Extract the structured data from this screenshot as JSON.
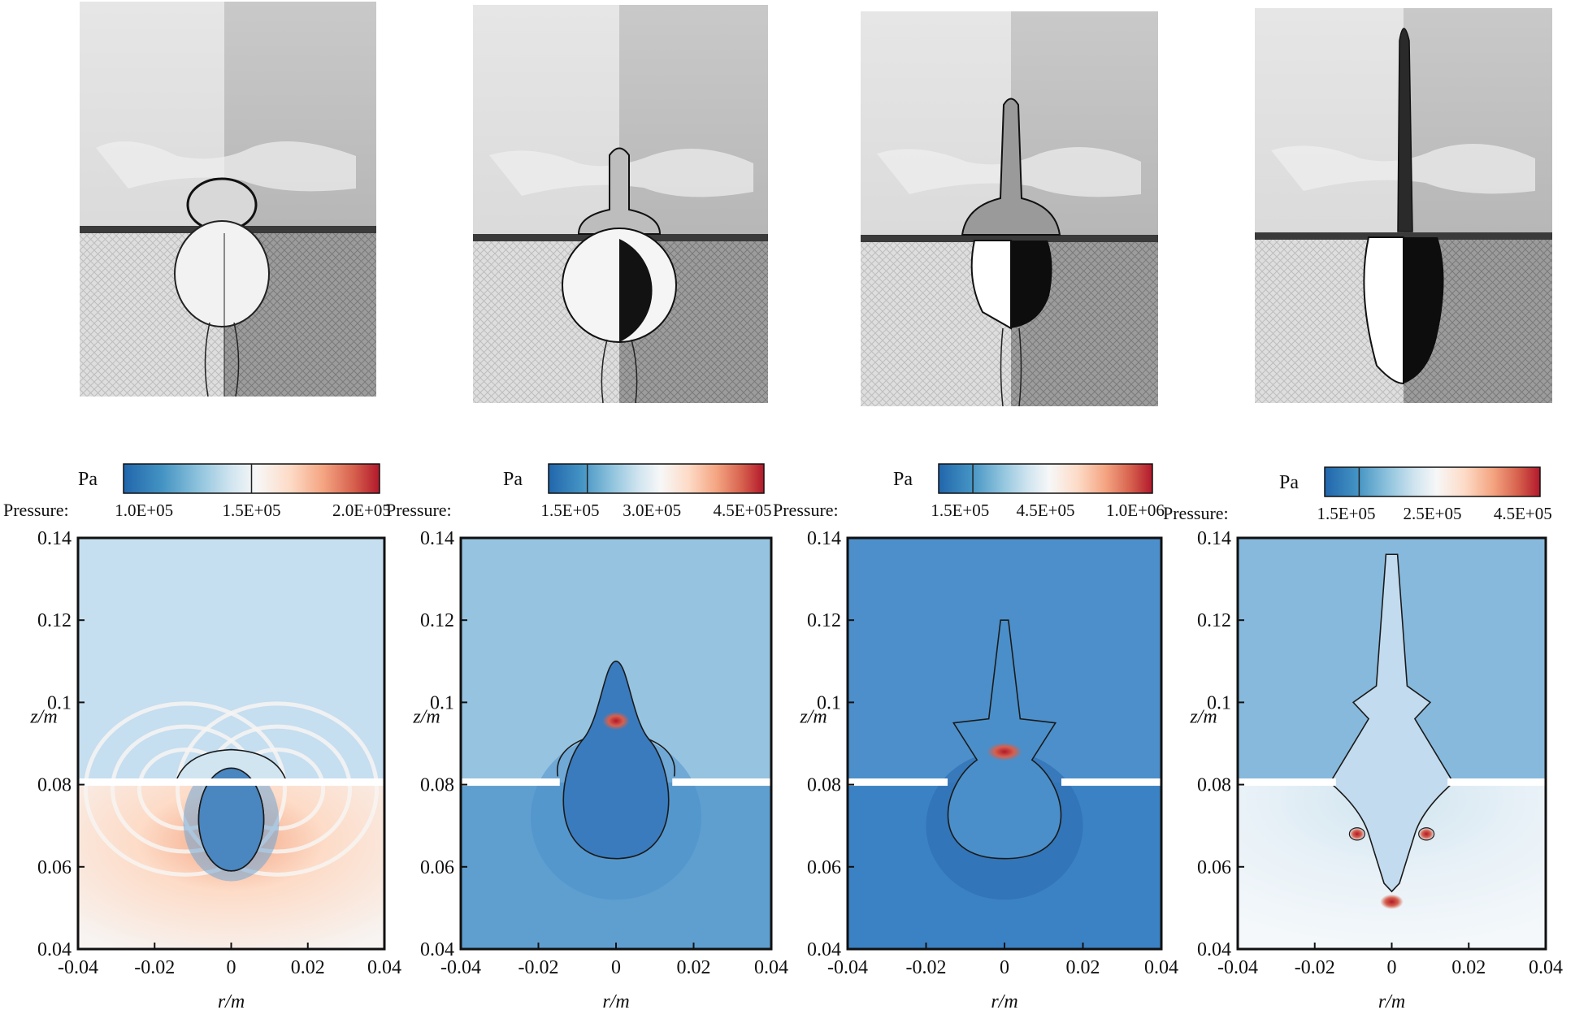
{
  "colors": {
    "scale": [
      "#2166ac",
      "#4393c3",
      "#92c5de",
      "#d1e5f0",
      "#f7f7f7",
      "#fddbc7",
      "#f4a582",
      "#d6604d",
      "#b2182b"
    ],
    "outline": "#1a1a1a",
    "wall": "#ffffff"
  },
  "panels": [
    {
      "colorbar": {
        "unit": "Pa",
        "label": "Pressure:",
        "ticks": [
          "1.0E+05",
          "1.5E+05",
          "2.0E+05"
        ]
      },
      "axes": {
        "x_ticks": [
          "-0.04",
          "-0.02",
          "0",
          "0.02",
          "0.04"
        ],
        "y_ticks": [
          "0.04",
          "0.06",
          "0.08",
          "0.1",
          "0.12",
          "0.14"
        ],
        "xlabel": "r/m",
        "ylabel": "z/m"
      }
    },
    {
      "colorbar": {
        "unit": "Pa",
        "label": "Pressure:",
        "ticks": [
          "1.5E+05",
          "3.0E+05",
          "4.5E+05"
        ]
      },
      "axes": {
        "x_ticks": [
          "-0.04",
          "-0.02",
          "0",
          "0.02",
          "0.04"
        ],
        "y_ticks": [
          "0.04",
          "0.06",
          "0.08",
          "0.1",
          "0.12",
          "0.14"
        ],
        "xlabel": "r/m",
        "ylabel": "z/m"
      }
    },
    {
      "colorbar": {
        "unit": "Pa",
        "label": "Pressure:",
        "ticks": [
          "1.5E+05",
          "4.5E+05",
          "1.0E+06"
        ]
      },
      "axes": {
        "x_ticks": [
          "-0.04",
          "-0.02",
          "0",
          "0.02",
          "0.04"
        ],
        "y_ticks": [
          "0.04",
          "0.06",
          "0.08",
          "0.1",
          "0.12",
          "0.14"
        ],
        "xlabel": "r/m",
        "ylabel": "z/m"
      }
    },
    {
      "colorbar": {
        "unit": "Pa",
        "label": "Pressure:",
        "ticks": [
          "1.5E+05",
          "2.5E+05",
          "4.5E+05"
        ]
      },
      "axes": {
        "x_ticks": [
          "-0.04",
          "-0.02",
          "0",
          "0.02",
          "0.04"
        ],
        "y_ticks": [
          "0.04",
          "0.06",
          "0.08",
          "0.1",
          "0.12",
          "0.14"
        ],
        "xlabel": "r/m",
        "ylabel": "z/m"
      }
    }
  ]
}
